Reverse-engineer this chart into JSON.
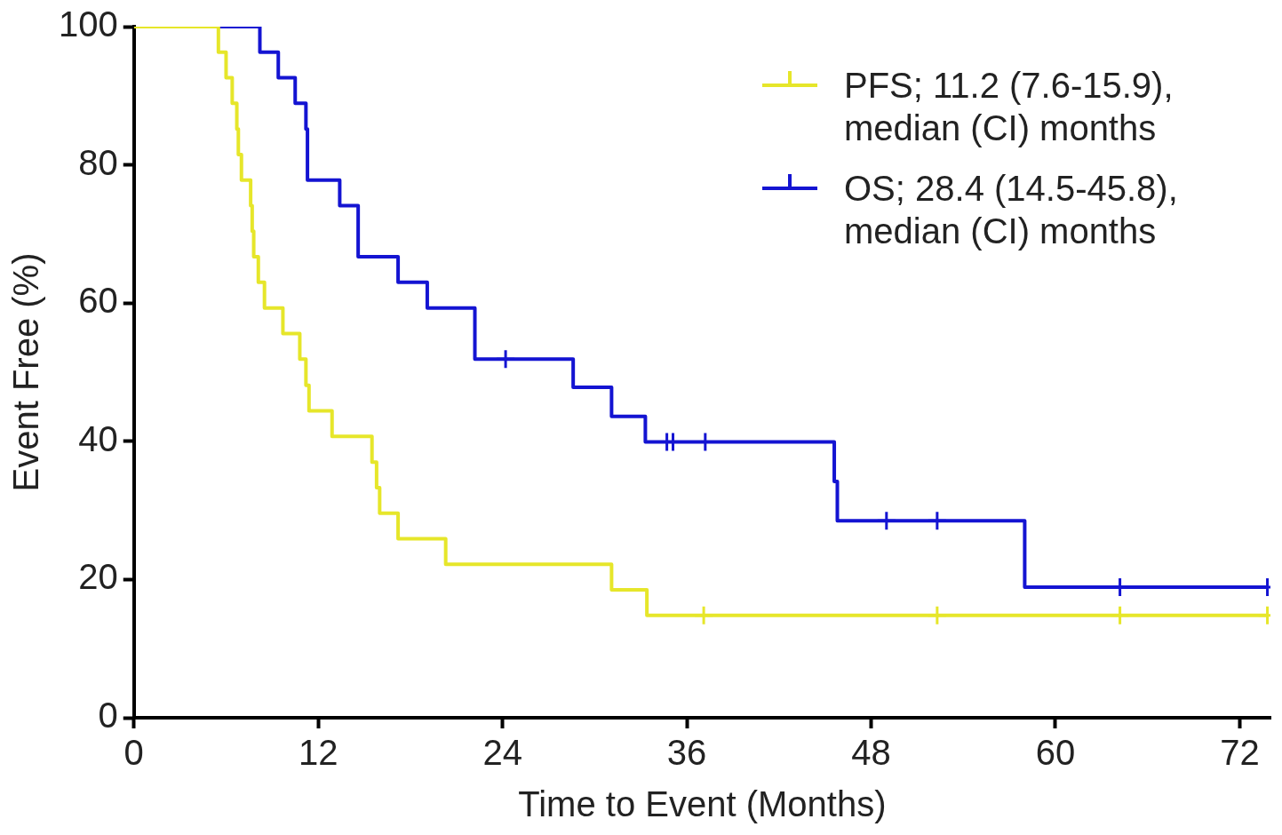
{
  "chart_data": {
    "type": "step",
    "xlabel": "Time to Event (Months)",
    "ylabel": "Event Free (%)",
    "xlim": [
      0,
      74
    ],
    "xticks": [
      0,
      12,
      24,
      36,
      48,
      60,
      72
    ],
    "ylim": [
      0,
      100
    ],
    "yticks": [
      0,
      20,
      40,
      60,
      80,
      100
    ],
    "grid": false,
    "legend": "top right",
    "line_style": "solid",
    "series": [
      {
        "name": "PFS; 11.2 (7.6-15.9), median (CI) months",
        "color": "#e6e62a",
        "x": [
          0,
          5.5,
          6.0,
          6.4,
          6.7,
          6.8,
          7.0,
          7.6,
          7.7,
          7.8,
          8.1,
          8.5,
          9.7,
          10.8,
          11.2,
          11.4,
          12.9,
          15.5,
          15.8,
          16.0,
          17.2,
          20.3,
          31.1,
          33.4,
          73.8
        ],
        "values": [
          100,
          96.3,
          92.6,
          88.9,
          85.2,
          81.5,
          77.8,
          74.1,
          70.4,
          66.7,
          63.0,
          59.3,
          55.6,
          51.9,
          48.1,
          44.4,
          40.7,
          37.0,
          33.3,
          29.6,
          25.9,
          22.2,
          18.5,
          14.8,
          14.8
        ]
      },
      {
        "name": "OS; 28.4 (14.5-45.8), median (CI) months",
        "color": "#1414d2",
        "x": [
          0,
          8.2,
          9.4,
          10.5,
          11.2,
          11.3,
          13.4,
          14.6,
          17.2,
          19.1,
          22.2,
          28.6,
          31.1,
          33.3,
          45.6,
          45.8,
          58.0,
          73.8
        ],
        "values": [
          100,
          96.3,
          92.6,
          88.9,
          85.2,
          77.8,
          74.1,
          66.7,
          63.0,
          59.3,
          51.9,
          47.8,
          43.6,
          39.9,
          34.2,
          28.5,
          18.9,
          18.9
        ]
      },
      {
        "color": "#e6e62a",
        "type": "scatter",
        "marker": "cross",
        "x": [
          37.1,
          52.3,
          64.2,
          73.8
        ],
        "values": [
          14.8,
          14.8,
          14.8,
          14.8
        ]
      },
      {
        "color": "#1414d2",
        "type": "scatter",
        "marker": "cross",
        "x": [
          24.2,
          34.7,
          35.1,
          37.2,
          49.0,
          52.3,
          64.2,
          73.8
        ],
        "values": [
          51.9,
          39.9,
          39.9,
          39.9,
          28.5,
          28.5,
          18.9,
          18.9
        ]
      }
    ]
  }
}
